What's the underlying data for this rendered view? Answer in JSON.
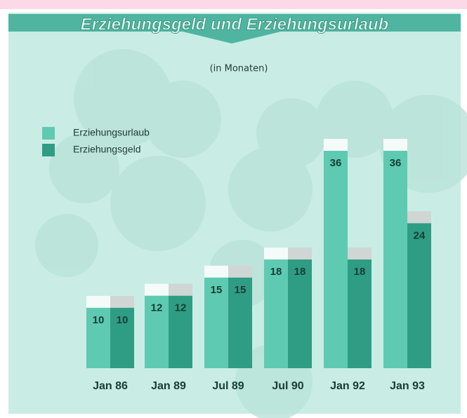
{
  "chart_data": {
    "type": "bar",
    "title": "Erziehungsgeld und Erziehungsurlaub",
    "subtitle": "(in Monaten)",
    "categories": [
      "Jan 86",
      "Jan 89",
      "Jul 89",
      "Jul 90",
      "Jan 92",
      "Jan 93"
    ],
    "series": [
      {
        "name": "Erziehungsurlaub",
        "color": "#5ecab2",
        "values": [
          10,
          12,
          15,
          18,
          36,
          36
        ]
      },
      {
        "name": "Erziehungsgeld",
        "color": "#2f9c84",
        "values": [
          10,
          12,
          15,
          18,
          18,
          24
        ]
      }
    ],
    "legend": "upper left"
  }
}
